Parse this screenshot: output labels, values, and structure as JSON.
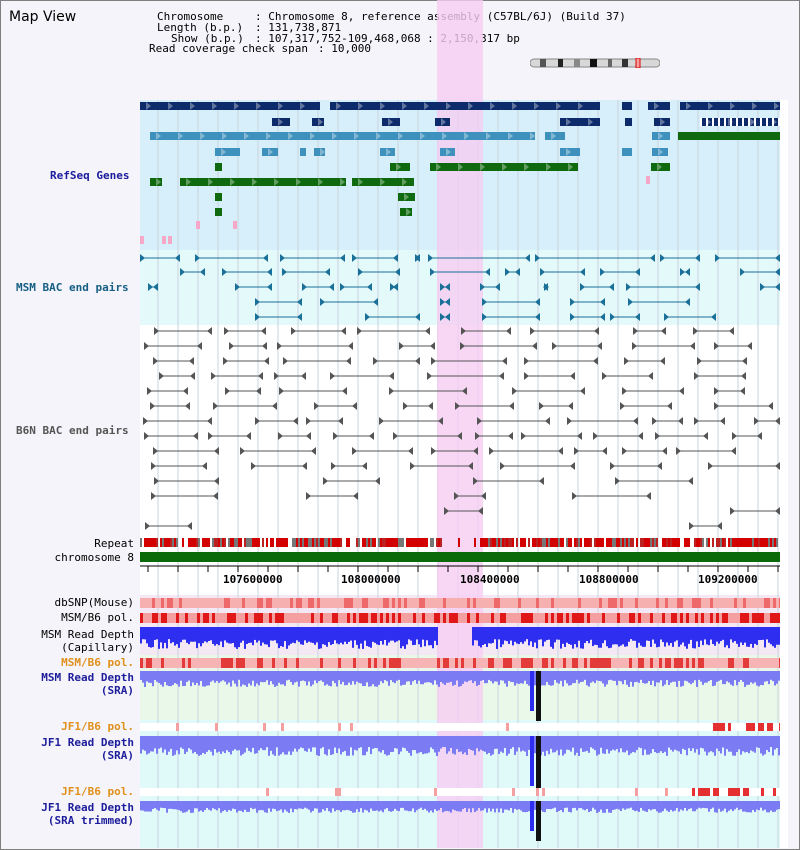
{
  "view_title": "Map View",
  "header": {
    "chromosome_label": "Chromosome",
    "chromosome_value": ": Chromosome 8, reference assembly (C57BL/6J) (Build 37)",
    "length_label": "Length (b.p.)",
    "length_value": ": 131,738,871",
    "show_label": "Show (b.p.)",
    "show_value": ": 107,317,752-109,468,068 : 2,150,317 bp",
    "coverage_label": "Read coverage check span",
    "coverage_value": ": 10,000"
  },
  "tracks": {
    "refseq": "RefSeq Genes",
    "msm_bac": "MSM BAC end pairs",
    "b6n_bac": "B6N BAC end pairs",
    "repeat": "Repeat",
    "chromosome": "chromosome 8",
    "dbsnp": "dbSNP(Mouse)",
    "msm_b6_pol_1": "MSM/B6 pol.",
    "msm_read_depth_cap_1": "MSM Read Depth",
    "msm_read_depth_cap_2": "(Capillary)",
    "msm_b6_pol_2": "MSM/B6 pol.",
    "msm_read_depth_sra_1": "MSM Read Depth",
    "msm_read_depth_sra_2": "(SRA)",
    "jf1_b6_pol_1": "JF1/B6 pol.",
    "jf1_read_depth_sra_1": "JF1 Read Depth",
    "jf1_read_depth_sra_2": "(SRA)",
    "jf1_b6_pol_2": "JF1/B6 pol.",
    "jf1_read_depth_trim_1": "JF1 Read Depth",
    "jf1_read_depth_trim_2": "(SRA trimmed)"
  },
  "axis": {
    "ticks": [
      "107600000",
      "108000000",
      "108400000",
      "108800000",
      "109200000"
    ]
  },
  "colors": {
    "highlight": "#f6cdf2",
    "refseq_bg": "#d6effa",
    "msm_bg": "#e4fafa",
    "gene_dark": "#0d2a6b",
    "gene_mid": "#3f91bd",
    "gene_green": "#0f6a0f",
    "bac_msm": "#1a7098",
    "bac_b6n": "#555555",
    "chromosome_bar": "#0a6a0a",
    "depth_blue": "#2e2ef0",
    "depth_light": "#7b7bf4"
  }
}
